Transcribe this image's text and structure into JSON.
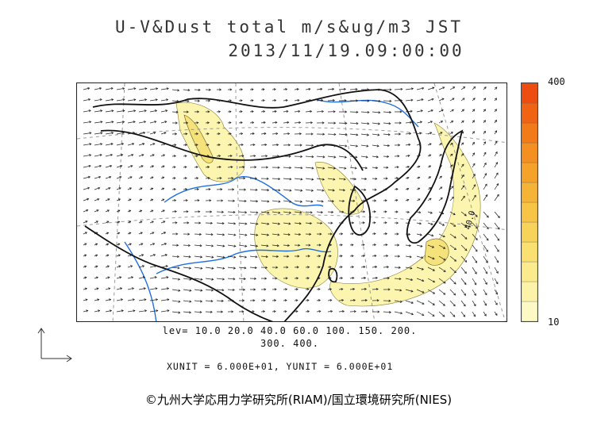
{
  "title": {
    "line1": "U-V&Dust total m/s&ug/m3 JST",
    "line2": "2013/11/19.09:00:00"
  },
  "colorbar": {
    "max_label": "400",
    "min_label": "10",
    "colors": [
      "#fdf9c4",
      "#fcf3a8",
      "#fbeb8c",
      "#f9e070",
      "#f8d35a",
      "#f7c446",
      "#f6b437",
      "#f5a22b",
      "#f48f21",
      "#f27a19",
      "#f06313",
      "#ed4d10"
    ]
  },
  "levels": {
    "line1": "lev= 10.0 20.0 40.0 60.0 100. 150. 200.",
    "line2": "300. 400."
  },
  "units": "XUNIT = 6.000E+01, YUNIT = 6.000E+01",
  "map_annotation": "40.0",
  "copyright": "©九州大学応用力学研究所(RIAM)/国立環境研究所(NIES)",
  "colors": {
    "dust_fill": "#fbf5b0",
    "dust_fill_strong": "#f6e27a",
    "coastline": "#111111",
    "border": "#111111",
    "river": "#1f6fe0",
    "graticule": "#999999",
    "wind_vector": "#222222"
  }
}
